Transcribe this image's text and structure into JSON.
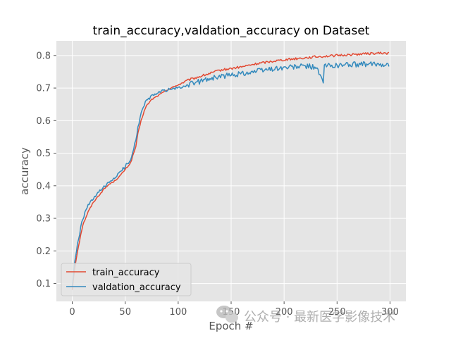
{
  "chart_data": {
    "type": "line",
    "title": "train_accuracy,valdation_accuracy on Dataset",
    "xlabel": "Epoch #",
    "ylabel": "accuracy",
    "xlim": [
      -15,
      315
    ],
    "ylim": [
      0.045,
      0.845
    ],
    "xticks": [
      0,
      50,
      100,
      150,
      200,
      250,
      300
    ],
    "yticks": [
      0.1,
      0.2,
      0.3,
      0.4,
      0.5,
      0.6,
      0.7,
      0.8
    ],
    "grid": true,
    "legend_position": "lower-left",
    "series": [
      {
        "name": "train_accuracy",
        "color": "#e24a33",
        "x": [
          0,
          2,
          5,
          8,
          10,
          15,
          20,
          25,
          30,
          35,
          40,
          45,
          50,
          55,
          60,
          62,
          65,
          68,
          70,
          75,
          80,
          85,
          90,
          100,
          110,
          120,
          130,
          140,
          150,
          160,
          170,
          180,
          190,
          200,
          210,
          220,
          230,
          240,
          250,
          260,
          270,
          280,
          290,
          299
        ],
        "y": [
          0.08,
          0.14,
          0.2,
          0.25,
          0.28,
          0.32,
          0.35,
          0.37,
          0.39,
          0.405,
          0.415,
          0.43,
          0.45,
          0.47,
          0.52,
          0.56,
          0.6,
          0.63,
          0.645,
          0.665,
          0.675,
          0.685,
          0.695,
          0.71,
          0.725,
          0.735,
          0.745,
          0.755,
          0.76,
          0.765,
          0.772,
          0.778,
          0.783,
          0.787,
          0.79,
          0.793,
          0.796,
          0.798,
          0.8,
          0.802,
          0.804,
          0.806,
          0.807,
          0.807
        ]
      },
      {
        "name": "valdation_accuracy",
        "color": "#348abd",
        "x": [
          0,
          2,
          5,
          8,
          10,
          15,
          20,
          25,
          30,
          35,
          40,
          45,
          50,
          55,
          60,
          62,
          65,
          68,
          70,
          75,
          80,
          85,
          90,
          100,
          110,
          120,
          130,
          140,
          150,
          160,
          170,
          180,
          190,
          200,
          210,
          220,
          230,
          237,
          238,
          240,
          250,
          260,
          270,
          280,
          290,
          299
        ],
        "y": [
          0.09,
          0.16,
          0.22,
          0.27,
          0.3,
          0.34,
          0.36,
          0.38,
          0.395,
          0.41,
          0.425,
          0.44,
          0.46,
          0.48,
          0.54,
          0.58,
          0.62,
          0.65,
          0.66,
          0.675,
          0.685,
          0.69,
          0.695,
          0.7,
          0.71,
          0.72,
          0.73,
          0.735,
          0.74,
          0.745,
          0.75,
          0.755,
          0.76,
          0.762,
          0.765,
          0.767,
          0.765,
          0.716,
          0.77,
          0.768,
          0.77,
          0.772,
          0.773,
          0.772,
          0.775,
          0.772
        ]
      }
    ]
  },
  "watermark": {
    "text": "公众号 · 最新医学影像技术",
    "icon": "wechat-icon"
  }
}
